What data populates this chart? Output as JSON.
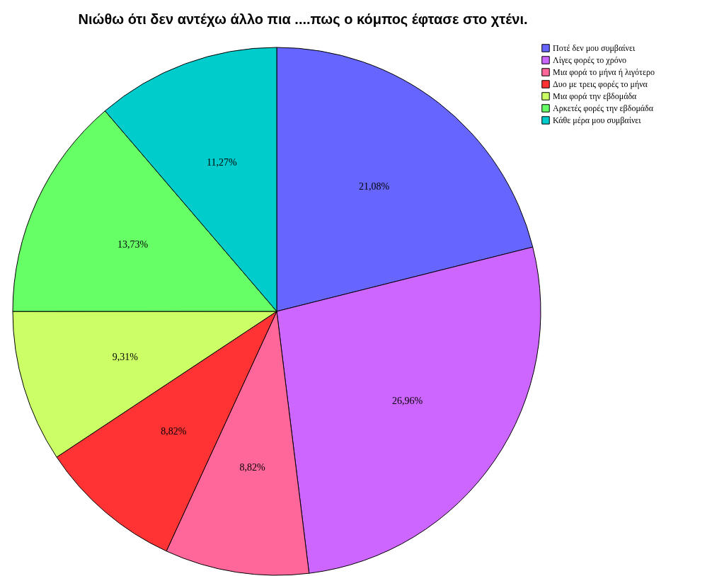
{
  "chart_data": {
    "type": "pie",
    "title": "Νιώθω ότι δεν αντέχω άλλο πια ....πως ο κόμπος έφτασε στο χτένι.",
    "categories": [
      "Ποτέ δεν μου συμβαίνει",
      "Λίγες φορές το χρόνο",
      "Μια φορά το μήνα ή λιγότερο",
      "Δυο με τρεις φορές το μήνα",
      "Μια φορά την εβδομάδα",
      "Αρκετές φορές την εβδομάδα",
      "Κάθε μέρα μου συμβαίνει"
    ],
    "values": [
      21.08,
      26.96,
      8.82,
      8.82,
      9.31,
      13.73,
      11.27
    ],
    "colors": [
      "#6666ff",
      "#cc66ff",
      "#ff6699",
      "#ff3333",
      "#ccff66",
      "#66ff66",
      "#00cccc"
    ],
    "value_labels": [
      "21,08%",
      "26,96%",
      "8,82%",
      "8,82%",
      "9,31%",
      "13,73%",
      "11,27%"
    ],
    "legend": "top right"
  }
}
